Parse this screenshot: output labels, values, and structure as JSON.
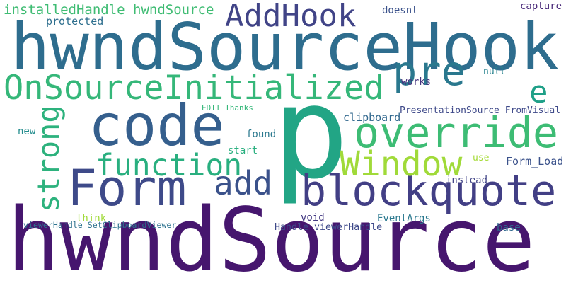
{
  "words": [
    {
      "text": "hwndSource",
      "color": "#46166e"
    },
    {
      "text": "hwndSourceHook",
      "color": "#2e6d8e"
    },
    {
      "text": "p",
      "color": "#22a585"
    },
    {
      "text": "code",
      "color": "#355f8d"
    },
    {
      "text": "Form",
      "color": "#3e4a89"
    },
    {
      "text": "blockquote",
      "color": "#423f85"
    },
    {
      "text": "override",
      "color": "#3dbc74"
    },
    {
      "text": "OnSourceInitialized",
      "color": "#35b779"
    },
    {
      "text": "AddHook",
      "color": "#414487"
    },
    {
      "text": "pre",
      "color": "#2a788e"
    },
    {
      "text": "function",
      "color": "#29af7f"
    },
    {
      "text": "Window",
      "color": "#a0da39"
    },
    {
      "text": "add",
      "color": "#3b528b"
    },
    {
      "text": "strong",
      "color": "#2db27d"
    },
    {
      "text": "e",
      "color": "#1fa088"
    },
    {
      "text": "installedHandle hwndSource",
      "color": "#3fbc73"
    },
    {
      "text": "protected",
      "color": "#2e6f8e"
    },
    {
      "text": "doesnt",
      "color": "#3b528b"
    },
    {
      "text": "capture",
      "color": "#482878"
    },
    {
      "text": "null",
      "color": "#26828e"
    },
    {
      "text": "works",
      "color": "#46337e"
    },
    {
      "text": "PresentationSource FromVisual",
      "color": "#3e4989"
    },
    {
      "text": "clipboard",
      "color": "#31688e"
    },
    {
      "text": "EDIT Thanks",
      "color": "#35b779"
    },
    {
      "text": "new",
      "color": "#228c8d"
    },
    {
      "text": "found",
      "color": "#2a788e"
    },
    {
      "text": "start",
      "color": "#29af7f"
    },
    {
      "text": "use",
      "color": "#a5db36"
    },
    {
      "text": "Form_Load",
      "color": "#3b528b"
    },
    {
      "text": "instead",
      "color": "#414487"
    },
    {
      "text": "think",
      "color": "#a0da39"
    },
    {
      "text": "viewerHandle SetClipboardViewer",
      "color": "#2c728e"
    },
    {
      "text": "void",
      "color": "#443a83"
    },
    {
      "text": "EventArgs",
      "color": "#2a788e"
    },
    {
      "text": "Handle viewerHandle",
      "color": "#3e4989"
    },
    {
      "text": "base",
      "color": "#31688e"
    }
  ]
}
